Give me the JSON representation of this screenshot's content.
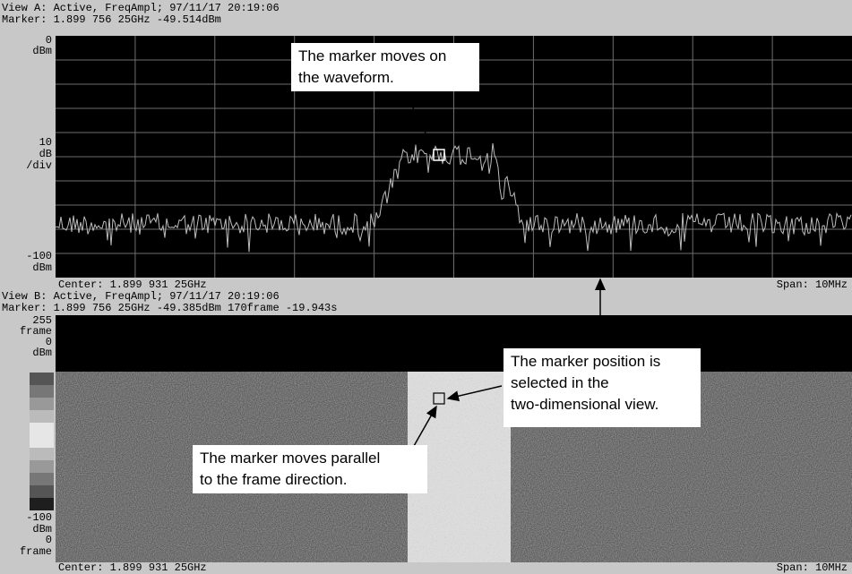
{
  "view_a": {
    "header": "View A: Active, FreqAmpl; 97/11/17 20:19:06",
    "marker": "Marker: 1.899 756 25GHz  -49.514dBm",
    "y_labels": [
      "0",
      "dBm",
      "10",
      "dB",
      "/div",
      "-100",
      "dBm"
    ],
    "center": "Center: 1.899 931 25GHz",
    "span": "Span: 10MHz"
  },
  "view_b": {
    "header": "View B: Active, FreqAmpl; 97/11/17 20:19:06",
    "marker": "Marker: 1.899 756 25GHz  -49.385dBm  170frame  -19.943s",
    "top_labels": [
      "255",
      "frame",
      "0",
      "dBm"
    ],
    "bottom_labels": [
      "-100",
      "dBm",
      "0",
      "frame"
    ],
    "center": "Center: 1.899 931 25GHz",
    "span": "Span: 10MHz"
  },
  "callouts": [
    {
      "lines": [
        "The marker moves on",
        "the waveform."
      ]
    },
    {
      "lines": [
        "The marker position is",
        "selected in the",
        "two-dimensional view."
      ]
    },
    {
      "lines": [
        "The marker moves parallel",
        "to the frame direction."
      ]
    }
  ]
}
